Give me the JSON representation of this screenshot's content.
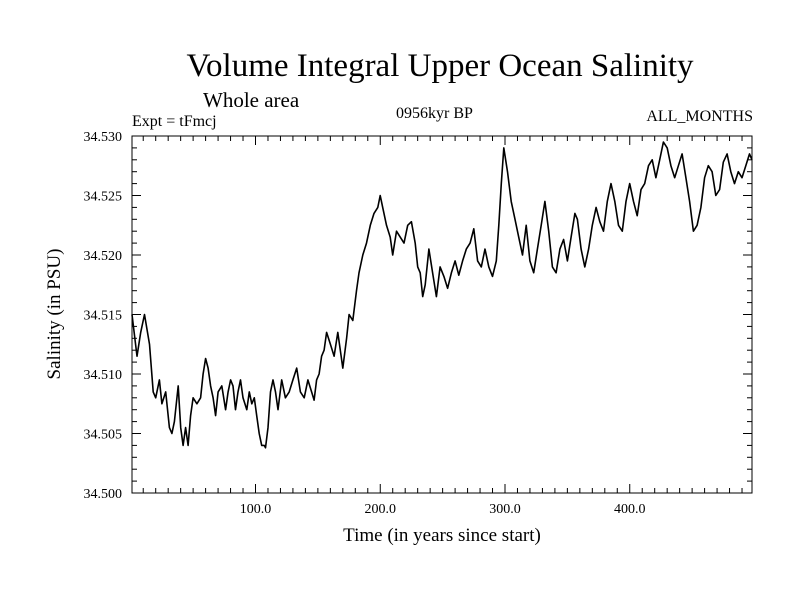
{
  "chart_data": {
    "type": "line",
    "title": "Volume Integral Upper Ocean Salinity",
    "subtitle": "Whole area",
    "experiment_label": "Expt = tFmcj",
    "period_label": "0956kyr BP",
    "months_label": "ALL_MONTHS",
    "xlabel": "Time (in years since start)",
    "ylabel": "Salinity (in PSU)",
    "xlim": [
      1,
      498
    ],
    "ylim": [
      34.5,
      34.53
    ],
    "x_ticks": [
      100,
      200,
      300,
      400
    ],
    "x_tick_labels": [
      "100.0",
      "200.0",
      "300.0",
      "400.0"
    ],
    "y_ticks": [
      34.5,
      34.505,
      34.51,
      34.515,
      34.52,
      34.525,
      34.53
    ],
    "y_tick_labels": [
      "34.500",
      "34.505",
      "34.510",
      "34.515",
      "34.520",
      "34.525",
      "34.530"
    ],
    "grid": false,
    "series": [
      {
        "name": "Salinity",
        "x": [
          1,
          5,
          8,
          11,
          15,
          18,
          20,
          23,
          25,
          28,
          31,
          33,
          35,
          38,
          40,
          42,
          44,
          46,
          48,
          50,
          53,
          56,
          58,
          60,
          62,
          64,
          66,
          68,
          70,
          73,
          76,
          78,
          80,
          82,
          84,
          86,
          88,
          90,
          93,
          95,
          97,
          99,
          101,
          103,
          105,
          107,
          108,
          110,
          112,
          114,
          116,
          118,
          121,
          124,
          127,
          130,
          133,
          136,
          139,
          142,
          145,
          147,
          149,
          151,
          153,
          155,
          157,
          160,
          163,
          166,
          168,
          170,
          173,
          175,
          178,
          181,
          183,
          186,
          189,
          192,
          195,
          198,
          200,
          202,
          205,
          208,
          210,
          213,
          216,
          219,
          222,
          225,
          228,
          230,
          232,
          234,
          236,
          239,
          242,
          245,
          248,
          251,
          254,
          257,
          260,
          263,
          266,
          269,
          272,
          275,
          278,
          281,
          284,
          287,
          290,
          293,
          295,
          297,
          299,
          302,
          305,
          308,
          311,
          314,
          317,
          320,
          323,
          326,
          329,
          332,
          335,
          338,
          341,
          344,
          347,
          350,
          353,
          356,
          358,
          361,
          364,
          367,
          370,
          373,
          376,
          379,
          382,
          385,
          388,
          391,
          394,
          397,
          400,
          403,
          406,
          409,
          412,
          415,
          418,
          421,
          424,
          427,
          430,
          433,
          436,
          439,
          442,
          445,
          448,
          451,
          454,
          457,
          460,
          463,
          466,
          469,
          472,
          475,
          478,
          481,
          484,
          487,
          490,
          493,
          496,
          498
        ],
        "values": [
          34.515,
          34.5115,
          34.5135,
          34.515,
          34.5125,
          34.5085,
          34.508,
          34.5095,
          34.5075,
          34.5085,
          34.5055,
          34.505,
          34.506,
          34.509,
          34.5055,
          34.504,
          34.5055,
          34.504,
          34.5065,
          34.508,
          34.5075,
          34.508,
          34.51,
          34.5113,
          34.5105,
          34.509,
          34.508,
          34.5065,
          34.5085,
          34.509,
          34.507,
          34.5085,
          34.5095,
          34.509,
          34.507,
          34.5085,
          34.5095,
          34.508,
          34.507,
          34.5085,
          34.5075,
          34.508,
          34.5065,
          34.505,
          34.504,
          34.504,
          34.5038,
          34.5055,
          34.5085,
          34.5095,
          34.5085,
          34.507,
          34.5095,
          34.508,
          34.5085,
          34.5095,
          34.5105,
          34.5085,
          34.508,
          34.5095,
          34.5085,
          34.5078,
          34.5095,
          34.51,
          34.5115,
          34.512,
          34.5135,
          34.5125,
          34.5115,
          34.5135,
          34.512,
          34.5105,
          34.513,
          34.515,
          34.5145,
          34.517,
          34.5185,
          34.52,
          34.521,
          34.5225,
          34.5235,
          34.524,
          34.525,
          34.524,
          34.5225,
          34.5215,
          34.52,
          34.522,
          34.5215,
          34.521,
          34.5225,
          34.5228,
          34.521,
          34.519,
          34.5185,
          34.5165,
          34.5175,
          34.5205,
          34.5185,
          34.5165,
          34.519,
          34.5182,
          34.5172,
          34.5185,
          34.5195,
          34.5183,
          34.5195,
          34.5205,
          34.521,
          34.5222,
          34.5195,
          34.519,
          34.5205,
          34.519,
          34.5182,
          34.5195,
          34.5225,
          34.526,
          34.529,
          34.527,
          34.5245,
          34.523,
          34.5215,
          34.52,
          34.5225,
          34.5195,
          34.5185,
          34.5205,
          34.5225,
          34.5245,
          34.522,
          34.519,
          34.5185,
          34.5205,
          34.5213,
          34.5195,
          34.5215,
          34.5235,
          34.523,
          34.5205,
          34.519,
          34.5205,
          34.5225,
          34.524,
          34.5228,
          34.522,
          34.5245,
          34.526,
          34.5245,
          34.5225,
          34.522,
          34.5245,
          34.526,
          34.5245,
          34.5233,
          34.5255,
          34.526,
          34.5275,
          34.528,
          34.5265,
          34.528,
          34.5295,
          34.529,
          34.5275,
          34.5265,
          34.5275,
          34.5285,
          34.5265,
          34.5245,
          34.522,
          34.5225,
          34.524,
          34.5265,
          34.5275,
          34.527,
          34.525,
          34.5255,
          34.5278,
          34.5285,
          34.527,
          34.526,
          34.527,
          34.5265,
          34.5275,
          34.5285,
          34.528
        ]
      }
    ]
  }
}
